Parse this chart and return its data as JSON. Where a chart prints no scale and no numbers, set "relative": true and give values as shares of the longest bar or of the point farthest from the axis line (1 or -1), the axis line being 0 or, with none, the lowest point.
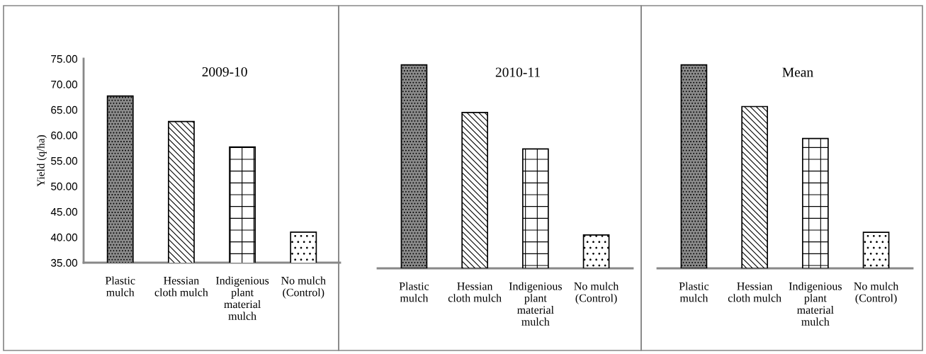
{
  "chart_data": [
    {
      "type": "bar",
      "title": "2009-10",
      "ylabel": "Yield (q/ha)",
      "categories": [
        "Plastic\nmulch",
        "Hessian\ncloth mulch",
        "Indigenious\nplant\nmaterial\nmulch",
        "No mulch\n(Control)"
      ],
      "values": [
        67.7,
        62.7,
        57.7,
        41.0
      ],
      "colors": [
        "#000000",
        "#000000",
        "#000000",
        "#000000"
      ],
      "ylim": [
        35,
        75
      ],
      "yticks": [
        {
          "value": 35,
          "label": "35.00"
        },
        {
          "value": 40,
          "label": "40.00"
        },
        {
          "value": 45,
          "label": "45.00"
        },
        {
          "value": 50,
          "label": "50.00"
        },
        {
          "value": 55,
          "label": "55.00"
        },
        {
          "value": 60,
          "label": "60.00"
        },
        {
          "value": 65,
          "label": "65.00"
        },
        {
          "value": 70,
          "label": "70.00"
        },
        {
          "value": 75,
          "label": "75.00"
        }
      ]
    },
    {
      "type": "bar",
      "title": "2010-11",
      "relative": true,
      "tick_labels": "x",
      "categories": [
        "Plastic\nmulch",
        "Hessian\ncloth mulch",
        "Indigenious\nplant\nmaterial\nmulch",
        "No mulch\n(Control)"
      ],
      "values": [
        1,
        0.766,
        0.587,
        0.164
      ],
      "colors": [
        "#000000",
        "#000000",
        "#000000",
        "#000000"
      ]
    },
    {
      "type": "bar",
      "title": "Mean",
      "relative": true,
      "tick_labels": "x",
      "categories": [
        "Plastic\nmulch",
        "Hessian\ncloth mulch",
        "Indigenious\nplant\nmaterial\nmulch",
        "No mulch\n(Control)"
      ],
      "values": [
        1,
        0.795,
        0.638,
        0.177
      ],
      "colors": [
        "#000000",
        "#000000",
        "#000000",
        "#000000"
      ]
    }
  ]
}
